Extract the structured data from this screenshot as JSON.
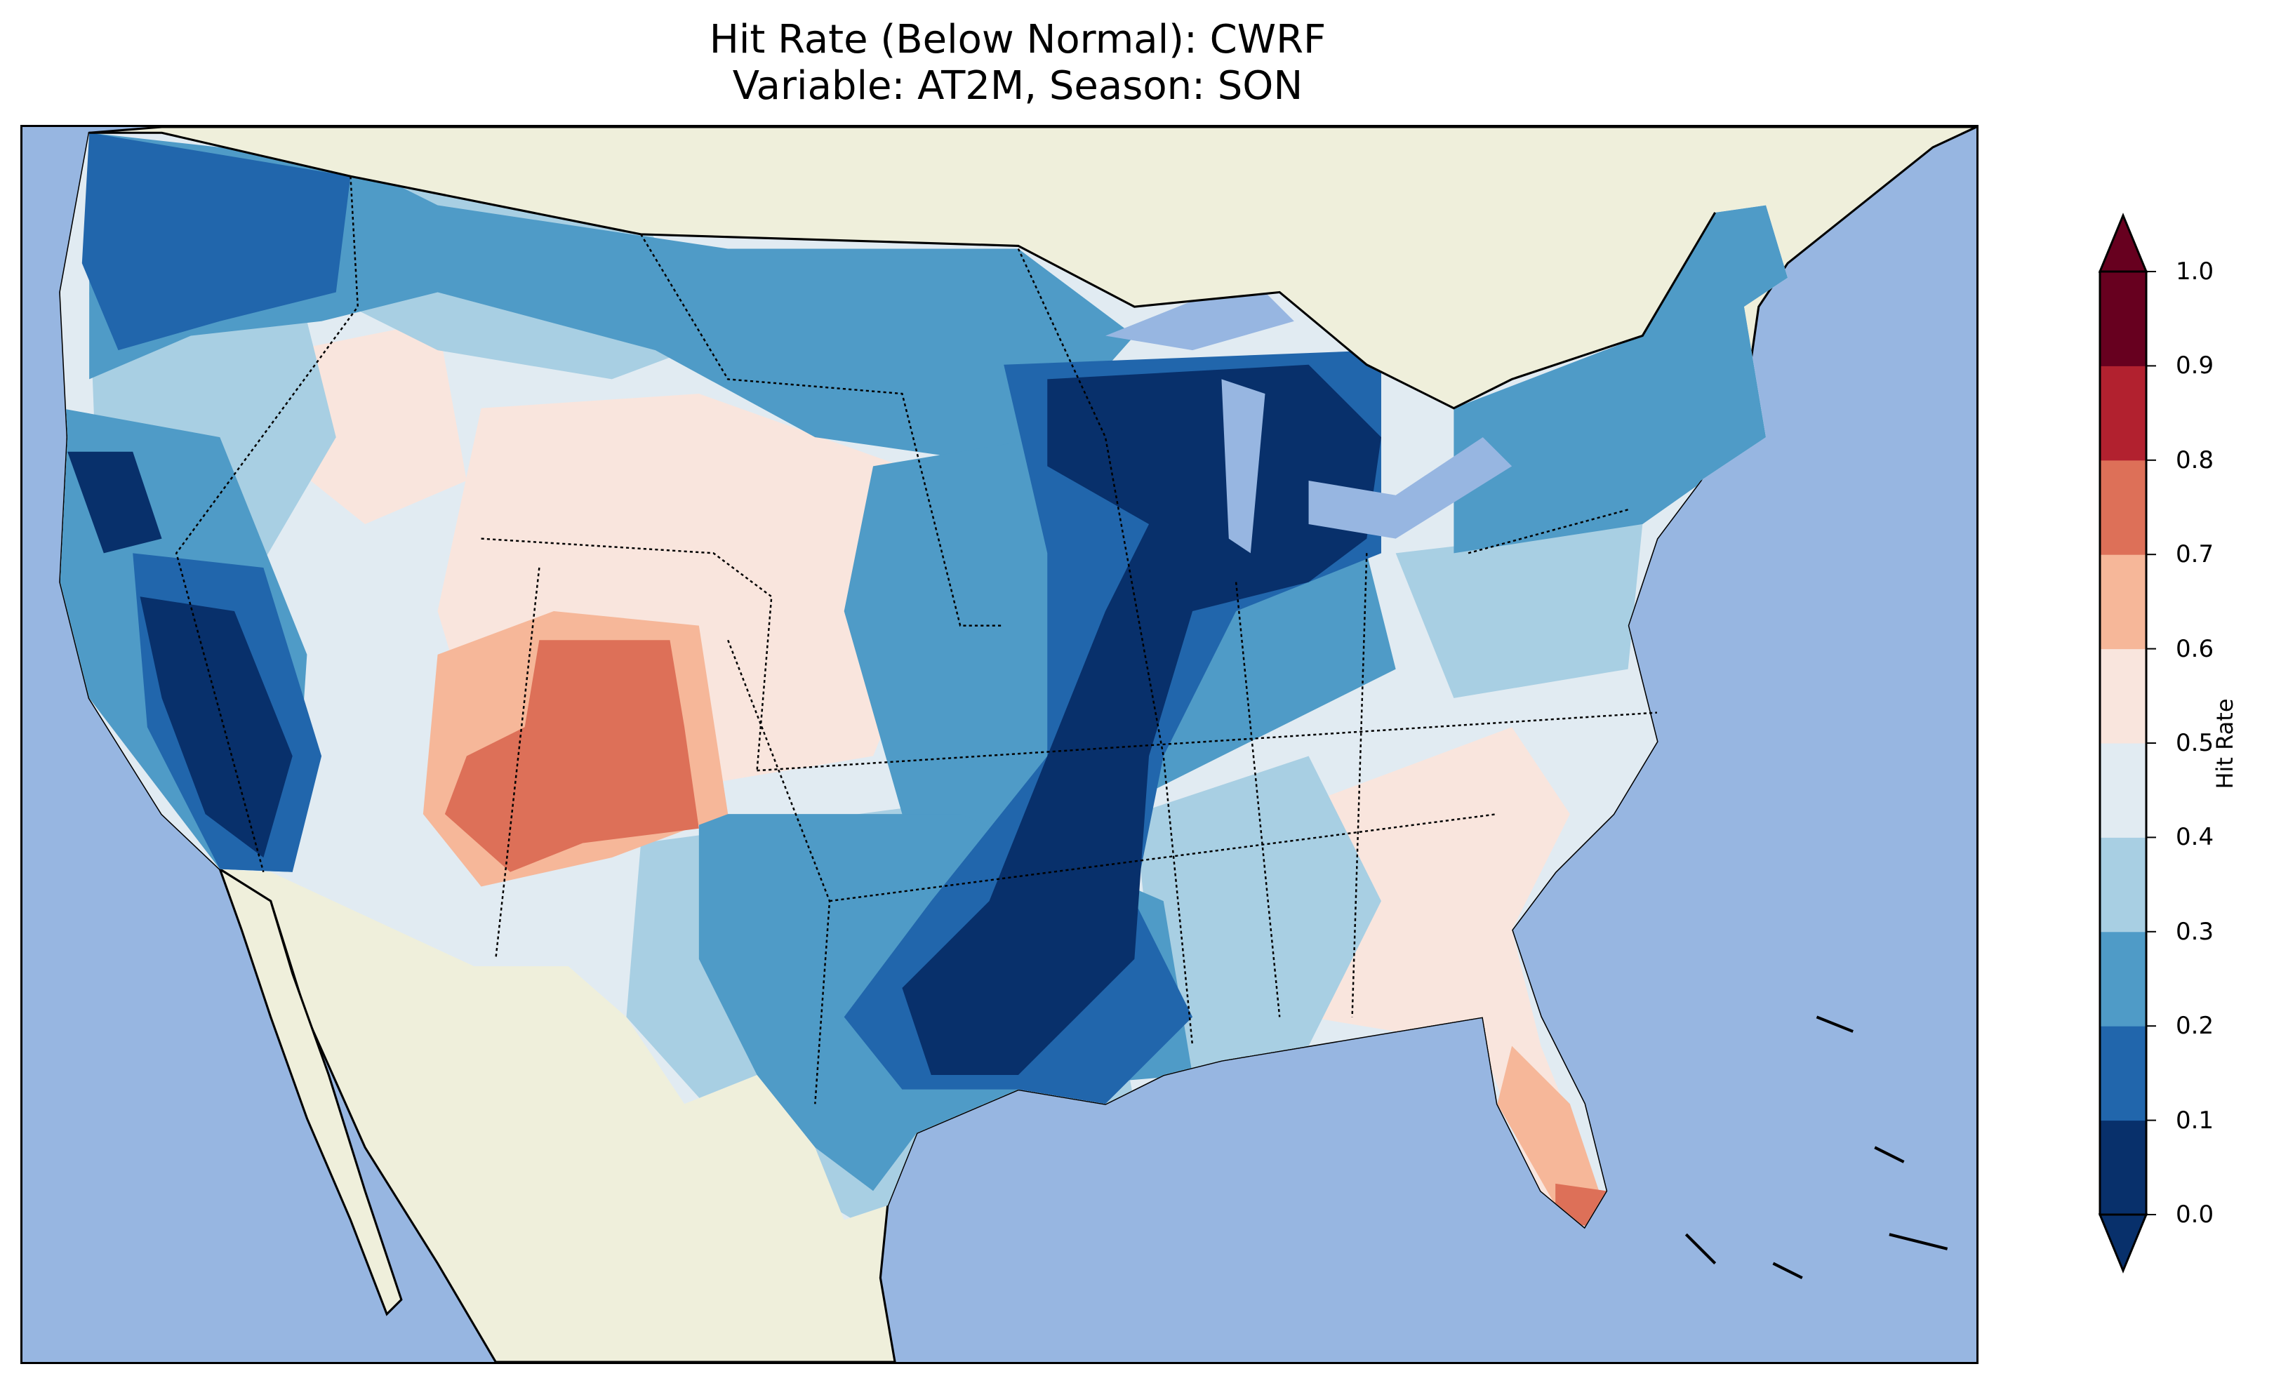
{
  "title": {
    "line1": "Hit Rate (Below Normal): CWRF",
    "line2": "Variable: AT2M, Season: SON"
  },
  "chart_data": {
    "type": "heatmap",
    "title": "Hit Rate (Below Normal): CWRF\nVariable: AT2M, Season: SON",
    "xlabel": "",
    "ylabel": "",
    "colorbar": {
      "label": "Hit Rate",
      "range": [
        0.0,
        1.0
      ],
      "extend": "both",
      "ticks": [
        "0.0",
        "0.1",
        "0.2",
        "0.3",
        "0.4",
        "0.5",
        "0.6",
        "0.7",
        "0.8",
        "0.9",
        "1.0"
      ],
      "levels": [
        0.0,
        0.1,
        0.2,
        0.3,
        0.4,
        0.5,
        0.6,
        0.7,
        0.8,
        0.9,
        1.0
      ],
      "colors": [
        "#08306b",
        "#2166ac",
        "#4f9bc7",
        "#a8cfe3",
        "#e1ebf2",
        "#f9e5dd",
        "#f6b799",
        "#dd7058",
        "#b2212f",
        "#67001f"
      ]
    },
    "map": {
      "ocean_color": "#97b6e1",
      "land_color": "#efefdb",
      "region": "CONUS"
    }
  }
}
